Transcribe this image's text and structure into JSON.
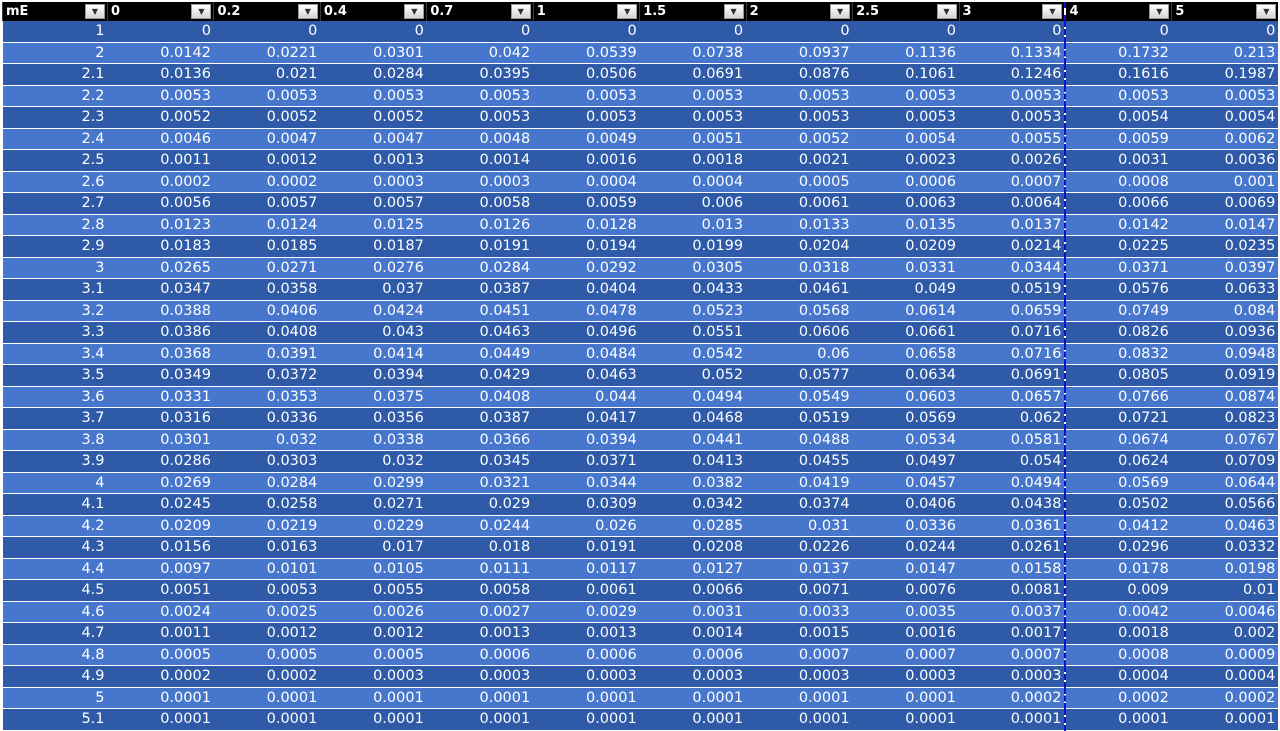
{
  "grid": {
    "row_header": "mE",
    "columns": [
      "0",
      "0.2",
      "0.4",
      "0.7",
      "1",
      "1.5",
      "2",
      "2.5",
      "3",
      "4",
      "5"
    ],
    "rows": [
      {
        "label": "1",
        "values": [
          "0",
          "0",
          "0",
          "0",
          "0",
          "0",
          "0",
          "0",
          "0",
          "0",
          "0"
        ]
      },
      {
        "label": "2",
        "values": [
          "0.0142",
          "0.0221",
          "0.0301",
          "0.042",
          "0.0539",
          "0.0738",
          "0.0937",
          "0.1136",
          "0.1334",
          "0.1732",
          "0.213"
        ]
      },
      {
        "label": "2.1",
        "values": [
          "0.0136",
          "0.021",
          "0.0284",
          "0.0395",
          "0.0506",
          "0.0691",
          "0.0876",
          "0.1061",
          "0.1246",
          "0.1616",
          "0.1987"
        ]
      },
      {
        "label": "2.2",
        "values": [
          "0.0053",
          "0.0053",
          "0.0053",
          "0.0053",
          "0.0053",
          "0.0053",
          "0.0053",
          "0.0053",
          "0.0053",
          "0.0053",
          "0.0053"
        ]
      },
      {
        "label": "2.3",
        "values": [
          "0.0052",
          "0.0052",
          "0.0052",
          "0.0053",
          "0.0053",
          "0.0053",
          "0.0053",
          "0.0053",
          "0.0053",
          "0.0054",
          "0.0054"
        ]
      },
      {
        "label": "2.4",
        "values": [
          "0.0046",
          "0.0047",
          "0.0047",
          "0.0048",
          "0.0049",
          "0.0051",
          "0.0052",
          "0.0054",
          "0.0055",
          "0.0059",
          "0.0062"
        ]
      },
      {
        "label": "2.5",
        "values": [
          "0.0011",
          "0.0012",
          "0.0013",
          "0.0014",
          "0.0016",
          "0.0018",
          "0.0021",
          "0.0023",
          "0.0026",
          "0.0031",
          "0.0036"
        ]
      },
      {
        "label": "2.6",
        "values": [
          "0.0002",
          "0.0002",
          "0.0003",
          "0.0003",
          "0.0004",
          "0.0004",
          "0.0005",
          "0.0006",
          "0.0007",
          "0.0008",
          "0.001"
        ]
      },
      {
        "label": "2.7",
        "values": [
          "0.0056",
          "0.0057",
          "0.0057",
          "0.0058",
          "0.0059",
          "0.006",
          "0.0061",
          "0.0063",
          "0.0064",
          "0.0066",
          "0.0069"
        ]
      },
      {
        "label": "2.8",
        "values": [
          "0.0123",
          "0.0124",
          "0.0125",
          "0.0126",
          "0.0128",
          "0.013",
          "0.0133",
          "0.0135",
          "0.0137",
          "0.0142",
          "0.0147"
        ]
      },
      {
        "label": "2.9",
        "values": [
          "0.0183",
          "0.0185",
          "0.0187",
          "0.0191",
          "0.0194",
          "0.0199",
          "0.0204",
          "0.0209",
          "0.0214",
          "0.0225",
          "0.0235"
        ]
      },
      {
        "label": "3",
        "values": [
          "0.0265",
          "0.0271",
          "0.0276",
          "0.0284",
          "0.0292",
          "0.0305",
          "0.0318",
          "0.0331",
          "0.0344",
          "0.0371",
          "0.0397"
        ]
      },
      {
        "label": "3.1",
        "values": [
          "0.0347",
          "0.0358",
          "0.037",
          "0.0387",
          "0.0404",
          "0.0433",
          "0.0461",
          "0.049",
          "0.0519",
          "0.0576",
          "0.0633"
        ]
      },
      {
        "label": "3.2",
        "values": [
          "0.0388",
          "0.0406",
          "0.0424",
          "0.0451",
          "0.0478",
          "0.0523",
          "0.0568",
          "0.0614",
          "0.0659",
          "0.0749",
          "0.084"
        ]
      },
      {
        "label": "3.3",
        "values": [
          "0.0386",
          "0.0408",
          "0.043",
          "0.0463",
          "0.0496",
          "0.0551",
          "0.0606",
          "0.0661",
          "0.0716",
          "0.0826",
          "0.0936"
        ]
      },
      {
        "label": "3.4",
        "values": [
          "0.0368",
          "0.0391",
          "0.0414",
          "0.0449",
          "0.0484",
          "0.0542",
          "0.06",
          "0.0658",
          "0.0716",
          "0.0832",
          "0.0948"
        ]
      },
      {
        "label": "3.5",
        "values": [
          "0.0349",
          "0.0372",
          "0.0394",
          "0.0429",
          "0.0463",
          "0.052",
          "0.0577",
          "0.0634",
          "0.0691",
          "0.0805",
          "0.0919"
        ]
      },
      {
        "label": "3.6",
        "values": [
          "0.0331",
          "0.0353",
          "0.0375",
          "0.0408",
          "0.044",
          "0.0494",
          "0.0549",
          "0.0603",
          "0.0657",
          "0.0766",
          "0.0874"
        ]
      },
      {
        "label": "3.7",
        "values": [
          "0.0316",
          "0.0336",
          "0.0356",
          "0.0387",
          "0.0417",
          "0.0468",
          "0.0519",
          "0.0569",
          "0.062",
          "0.0721",
          "0.0823"
        ]
      },
      {
        "label": "3.8",
        "values": [
          "0.0301",
          "0.032",
          "0.0338",
          "0.0366",
          "0.0394",
          "0.0441",
          "0.0488",
          "0.0534",
          "0.0581",
          "0.0674",
          "0.0767"
        ]
      },
      {
        "label": "3.9",
        "values": [
          "0.0286",
          "0.0303",
          "0.032",
          "0.0345",
          "0.0371",
          "0.0413",
          "0.0455",
          "0.0497",
          "0.054",
          "0.0624",
          "0.0709"
        ]
      },
      {
        "label": "4",
        "values": [
          "0.0269",
          "0.0284",
          "0.0299",
          "0.0321",
          "0.0344",
          "0.0382",
          "0.0419",
          "0.0457",
          "0.0494",
          "0.0569",
          "0.0644"
        ]
      },
      {
        "label": "4.1",
        "values": [
          "0.0245",
          "0.0258",
          "0.0271",
          "0.029",
          "0.0309",
          "0.0342",
          "0.0374",
          "0.0406",
          "0.0438",
          "0.0502",
          "0.0566"
        ]
      },
      {
        "label": "4.2",
        "values": [
          "0.0209",
          "0.0219",
          "0.0229",
          "0.0244",
          "0.026",
          "0.0285",
          "0.031",
          "0.0336",
          "0.0361",
          "0.0412",
          "0.0463"
        ]
      },
      {
        "label": "4.3",
        "values": [
          "0.0156",
          "0.0163",
          "0.017",
          "0.018",
          "0.0191",
          "0.0208",
          "0.0226",
          "0.0244",
          "0.0261",
          "0.0296",
          "0.0332"
        ]
      },
      {
        "label": "4.4",
        "values": [
          "0.0097",
          "0.0101",
          "0.0105",
          "0.0111",
          "0.0117",
          "0.0127",
          "0.0137",
          "0.0147",
          "0.0158",
          "0.0178",
          "0.0198"
        ]
      },
      {
        "label": "4.5",
        "values": [
          "0.0051",
          "0.0053",
          "0.0055",
          "0.0058",
          "0.0061",
          "0.0066",
          "0.0071",
          "0.0076",
          "0.0081",
          "0.009",
          "0.01"
        ]
      },
      {
        "label": "4.6",
        "values": [
          "0.0024",
          "0.0025",
          "0.0026",
          "0.0027",
          "0.0029",
          "0.0031",
          "0.0033",
          "0.0035",
          "0.0037",
          "0.0042",
          "0.0046"
        ]
      },
      {
        "label": "4.7",
        "values": [
          "0.0011",
          "0.0012",
          "0.0012",
          "0.0013",
          "0.0013",
          "0.0014",
          "0.0015",
          "0.0016",
          "0.0017",
          "0.0018",
          "0.002"
        ]
      },
      {
        "label": "4.8",
        "values": [
          "0.0005",
          "0.0005",
          "0.0005",
          "0.0006",
          "0.0006",
          "0.0006",
          "0.0007",
          "0.0007",
          "0.0007",
          "0.0008",
          "0.0009"
        ]
      },
      {
        "label": "4.9",
        "values": [
          "0.0002",
          "0.0002",
          "0.0003",
          "0.0003",
          "0.0003",
          "0.0003",
          "0.0003",
          "0.0003",
          "0.0003",
          "0.0004",
          "0.0004"
        ]
      },
      {
        "label": "5",
        "values": [
          "0.0001",
          "0.0001",
          "0.0001",
          "0.0001",
          "0.0001",
          "0.0001",
          "0.0001",
          "0.0001",
          "0.0002",
          "0.0002",
          "0.0002"
        ]
      },
      {
        "label": "5.1",
        "values": [
          "0.0001",
          "0.0001",
          "0.0001",
          "0.0001",
          "0.0001",
          "0.0001",
          "0.0001",
          "0.0001",
          "0.0001",
          "0.0001",
          "0.0001"
        ]
      }
    ]
  },
  "colors": {
    "header_bg": "#000000",
    "row_dark": "#2e5aa8",
    "row_light": "#4777cc",
    "cell_text": "#ffffff",
    "page_break": "#1010d0"
  },
  "icons": {
    "filter_button": "filter-dropdown-icon"
  }
}
